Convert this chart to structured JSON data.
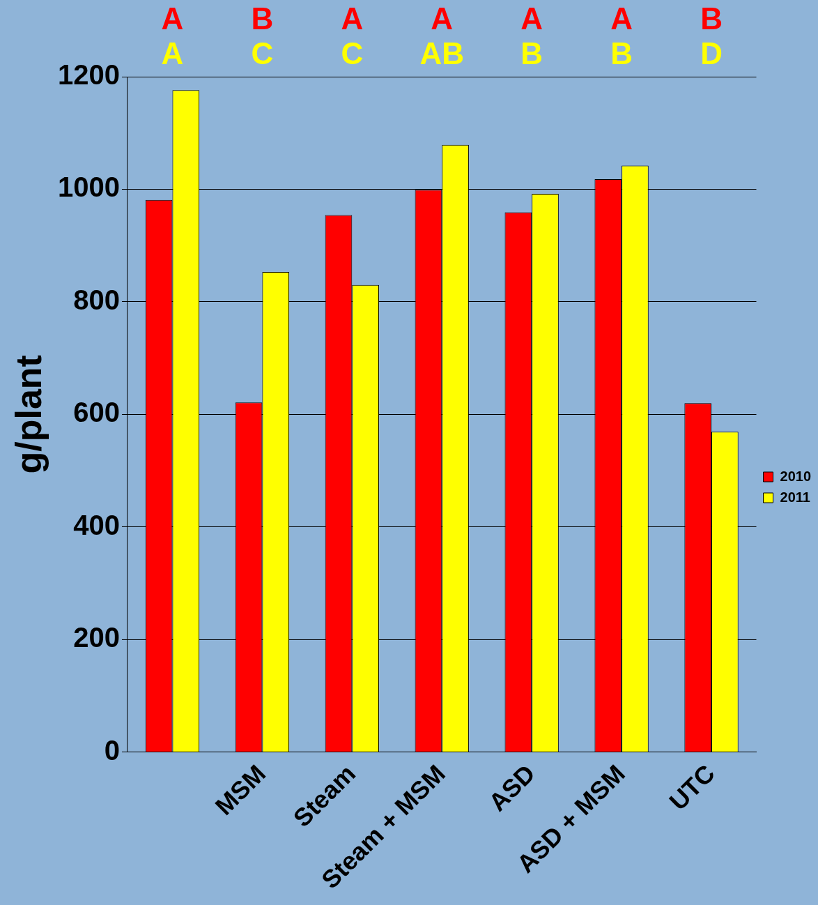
{
  "chart_data": {
    "type": "bar",
    "ylabel": "g/plant",
    "categories": [
      null,
      "MSM",
      "Steam",
      "Steam + MSM",
      "ASD",
      "ASD + MSM",
      "UTC"
    ],
    "series": [
      {
        "name": "2010",
        "color": "#ff0000",
        "values": [
          981,
          621,
          954,
          999,
          959,
          1018,
          620
        ]
      },
      {
        "name": "2011",
        "color": "#ffff00",
        "values": [
          1176,
          853,
          830,
          1079,
          992,
          1042,
          569
        ]
      }
    ],
    "ylim": [
      0,
      1200
    ],
    "yticks": [
      0,
      200,
      400,
      600,
      800,
      1000,
      1200
    ],
    "grid": "y",
    "legend": "right",
    "annotations": [
      "A",
      "B",
      "A",
      "A",
      "A",
      "A",
      "B",
      "A",
      "C",
      "C",
      "AB",
      "B",
      "B",
      "D"
    ]
  }
}
